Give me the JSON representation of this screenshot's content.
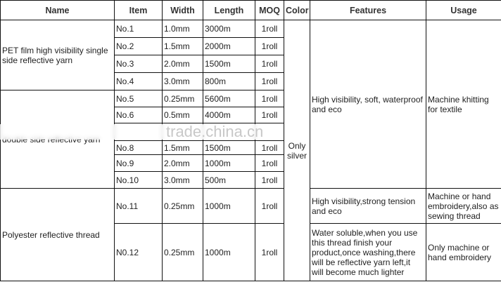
{
  "headers": [
    "Name",
    "Item",
    "Width",
    "Length",
    "MOQ",
    "Color",
    "Features",
    "Usage"
  ],
  "groups": [
    {
      "name": "PET film high visibility single side reflective yarn"
    },
    {
      "name": "double side reflective yarn"
    },
    {
      "name": "Polyester reflective thread"
    }
  ],
  "rows": [
    {
      "item": "No.1",
      "width": "1.0mm",
      "length": "3000m",
      "moq": "1roll"
    },
    {
      "item": "No.2",
      "width": "1.5mm",
      "length": "2000m",
      "moq": "1roll"
    },
    {
      "item": "No.3",
      "width": "2.0mm",
      "length": "1500m",
      "moq": "1roll"
    },
    {
      "item": "No.4",
      "width": "3.0mm",
      "length": "800m",
      "moq": "1roll"
    },
    {
      "item": "No.5",
      "width": "0.25mm",
      "length": "5600m",
      "moq": "1roll"
    },
    {
      "item": "No.6",
      "width": "0.5mm",
      "length": "4000m",
      "moq": "1roll"
    },
    {
      "item": "",
      "width": "",
      "length": "",
      "moq": ""
    },
    {
      "item": "No.8",
      "width": "1.5mm",
      "length": "1500m",
      "moq": "1roll"
    },
    {
      "item": "No.9",
      "width": "2.0mm",
      "length": "1000m",
      "moq": "1roll"
    },
    {
      "item": "No.10",
      "width": "3.0mm",
      "length": "500m",
      "moq": "1roll"
    },
    {
      "item": "No.11",
      "width": "0.25mm",
      "length": "1000m",
      "moq": "1roll"
    },
    {
      "item": "N0.12",
      "width": "0.25mm",
      "length": "1000m",
      "moq": "1roll"
    }
  ],
  "color": "Only silver",
  "features": [
    "High visibility, soft, waterproof and eco",
    "High visibility,strong tension and eco",
    "Water soluble,when you use this thread finish your product,once washing,there will be reflective yarn left,it will become much lighter"
  ],
  "usage": [
    "Machine khitting for textile",
    "Machine or hand embroidery,also as sewing thread",
    "Only machine  or hand embroidery"
  ],
  "watermark": "trade.china.cn"
}
